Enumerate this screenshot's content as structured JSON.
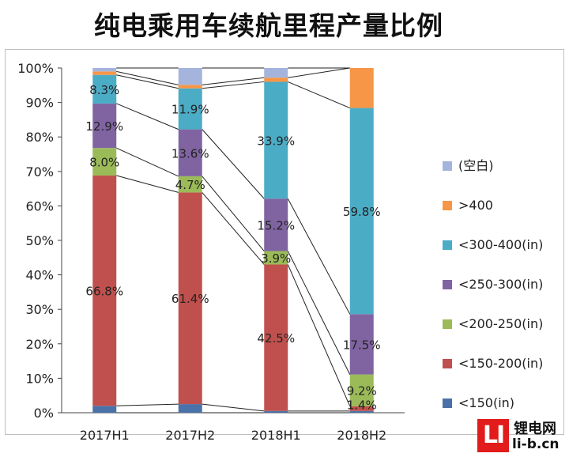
{
  "chart_data": {
    "type": "bar",
    "stacked": true,
    "normalized": true,
    "title": "纯电乘用车续航里程产量比例",
    "categories": [
      "2017H1",
      "2017H2",
      "2018H1",
      "2018H2"
    ],
    "ylim": [
      0,
      100
    ],
    "yticks": [
      "0%",
      "10%",
      "20%",
      "30%",
      "40%",
      "50%",
      "60%",
      "70%",
      "80%",
      "90%",
      "100%"
    ],
    "grid": false,
    "legend_position": "right",
    "series": [
      {
        "name": "<150(in)",
        "color": "#4a72a8",
        "values": [
          2.0,
          2.5,
          0.5,
          0.5
        ],
        "labels": [
          "",
          "",
          "",
          ""
        ]
      },
      {
        "name": "<150-200(in)",
        "color": "#c0504d",
        "values": [
          66.8,
          61.4,
          42.5,
          1.4
        ],
        "labels": [
          "66.8%",
          "61.4%",
          "42.5%",
          "1.4%"
        ]
      },
      {
        "name": "<200-250(in)",
        "color": "#9bbb59",
        "values": [
          8.0,
          4.7,
          3.9,
          9.2
        ],
        "labels": [
          "8.0%",
          "4.7%",
          "3.9%",
          "9.2%"
        ]
      },
      {
        "name": "<250-300(in)",
        "color": "#8064a2",
        "values": [
          12.9,
          13.6,
          15.2,
          17.5
        ],
        "labels": [
          "12.9%",
          "13.6%",
          "15.2%",
          "17.5%"
        ]
      },
      {
        "name": "<300-400(in)",
        "color": "#4bacc6",
        "values": [
          8.3,
          11.9,
          33.9,
          59.8
        ],
        "labels": [
          "8.3%",
          "11.9%",
          "33.9%",
          "59.8%"
        ]
      },
      {
        "name": ">400",
        "color": "#f79646",
        "values": [
          1.0,
          1.0,
          1.2,
          11.6
        ],
        "labels": [
          "",
          "",
          "",
          ""
        ]
      },
      {
        "name": "(空白)",
        "color": "#a5b4dc",
        "values": [
          1.0,
          4.9,
          2.8,
          0.0
        ],
        "labels": [
          "",
          "",
          "",
          ""
        ]
      }
    ]
  },
  "watermark": {
    "logo_text": "LI",
    "brand": "锂电网",
    "url": "li-b.cn"
  }
}
